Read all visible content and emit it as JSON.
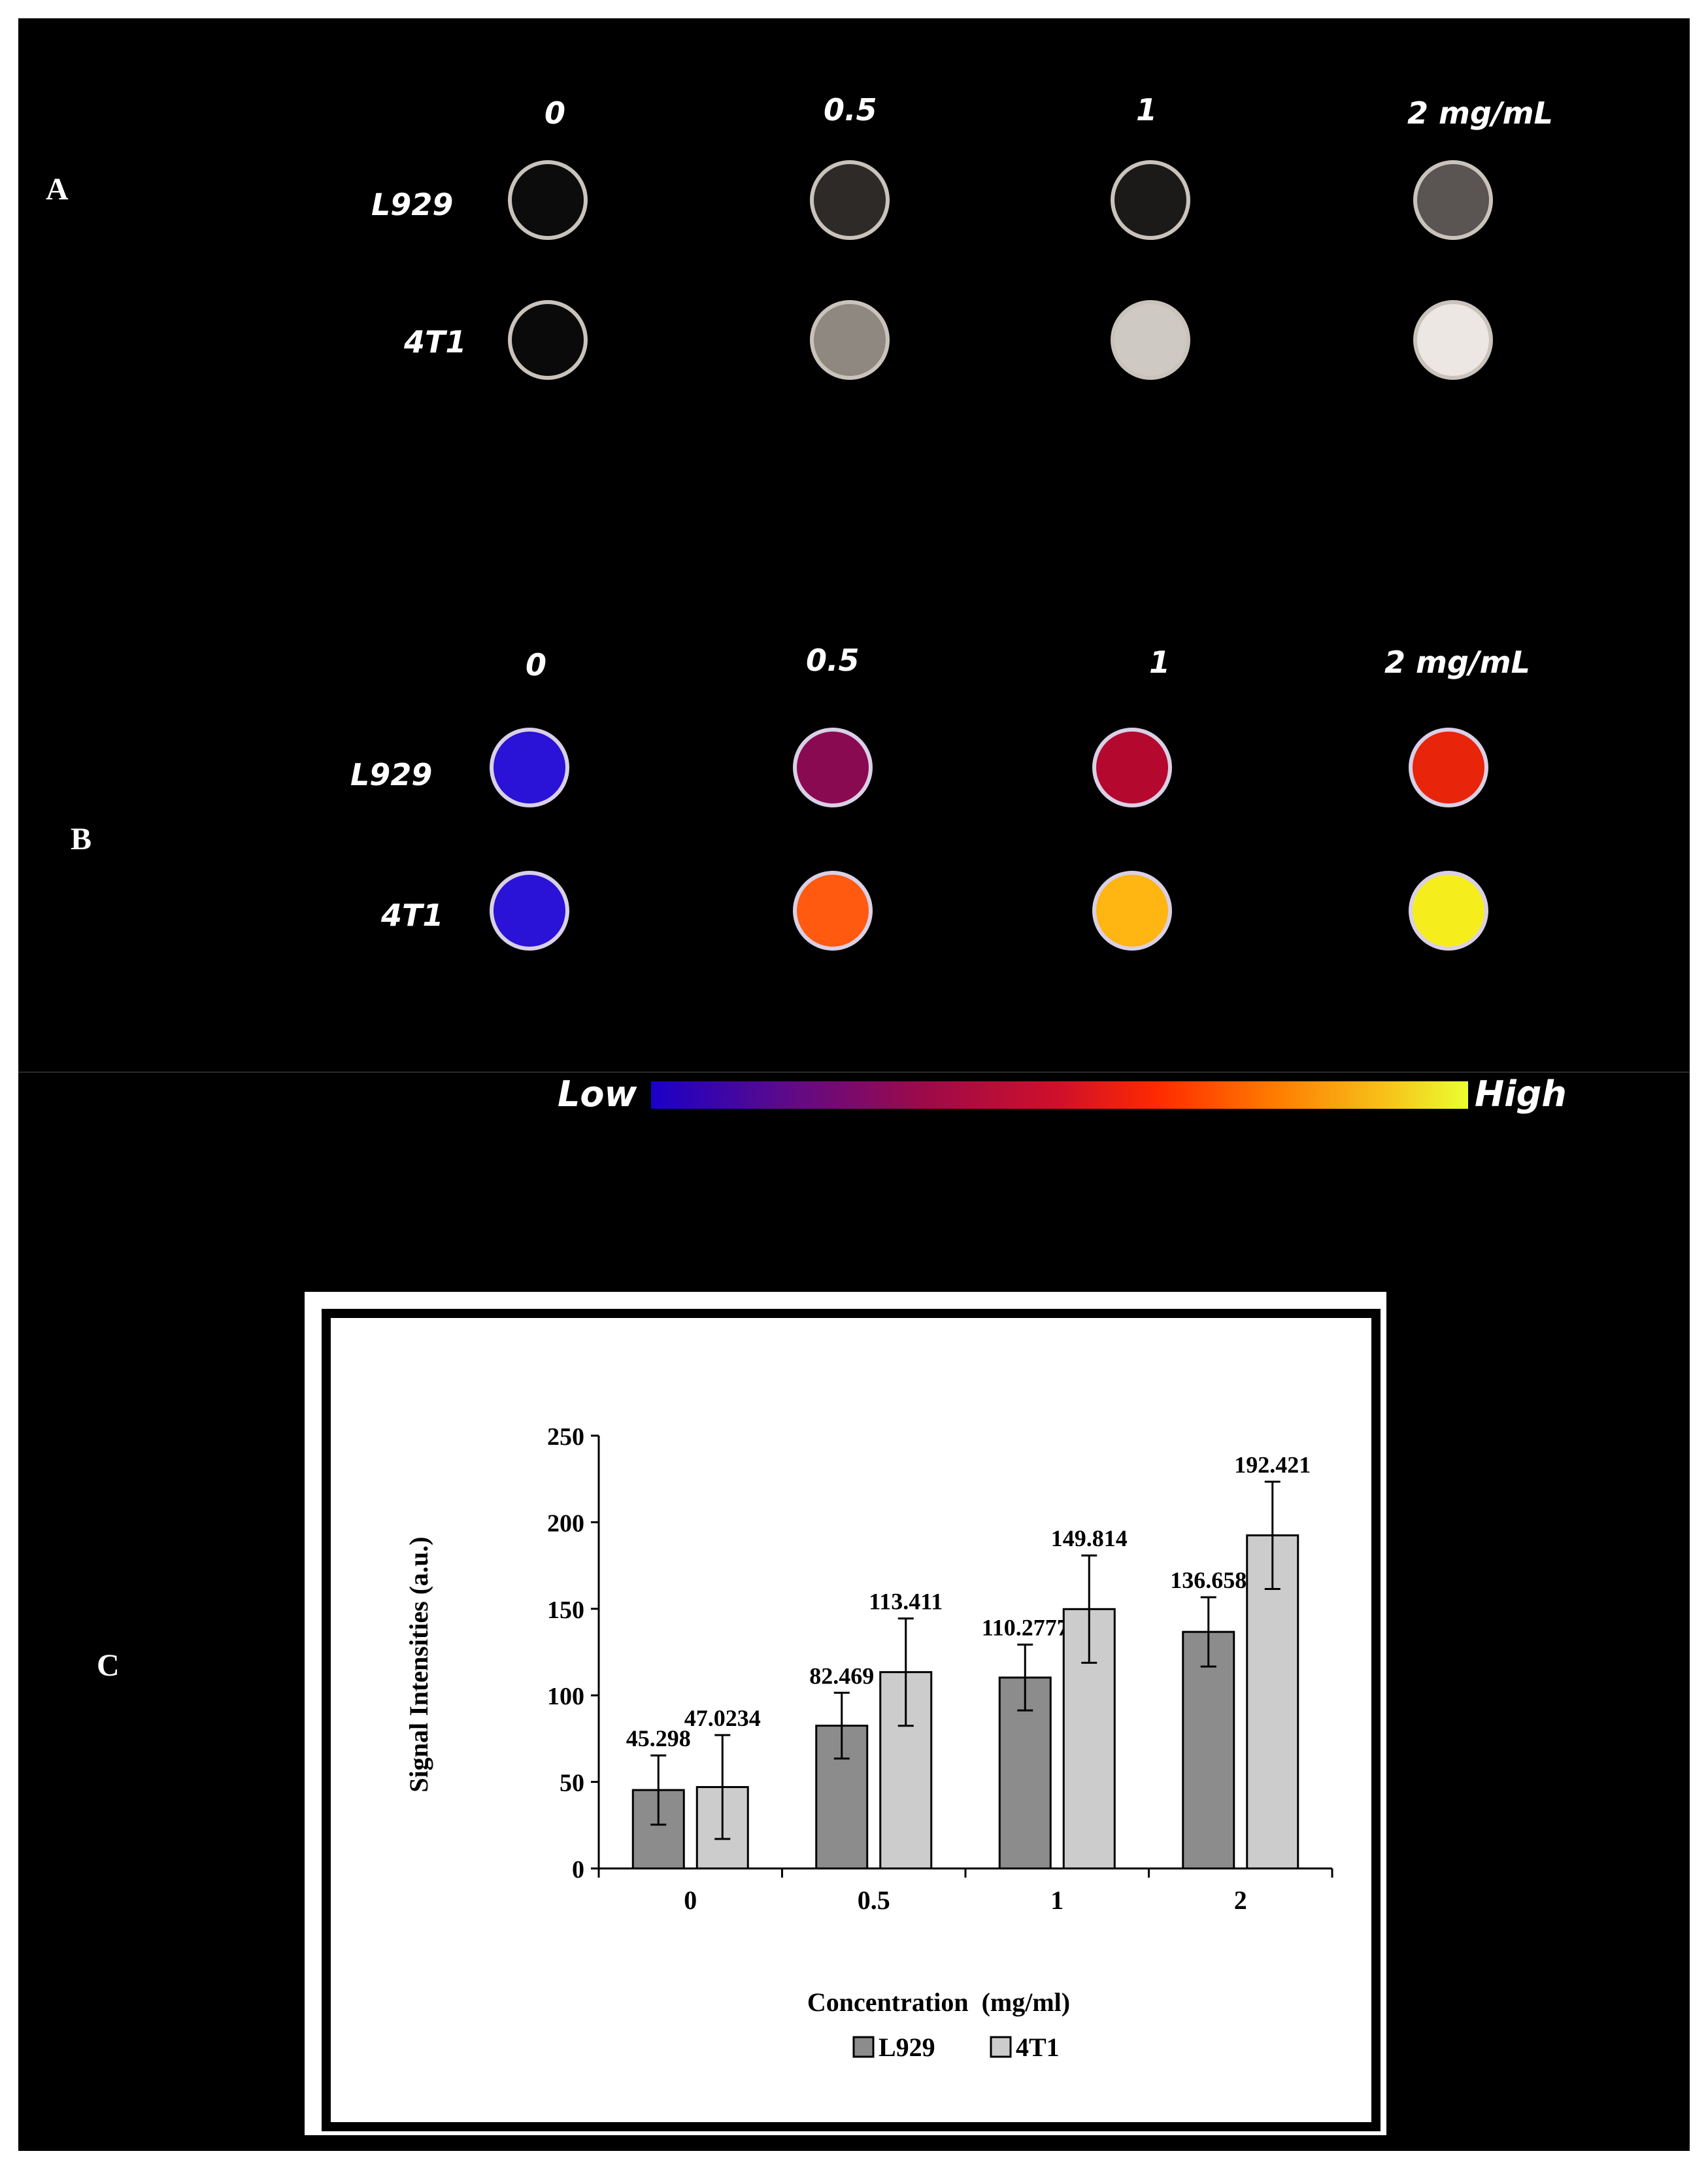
{
  "panels": {
    "a_letter": "A",
    "b_letter": "B",
    "c_letter": "C"
  },
  "panel_a": {
    "concentrations": [
      "0",
      "0.5",
      "1",
      "2 mg/mL"
    ],
    "rows": [
      "L929",
      "4T1"
    ],
    "well_colors": {
      "L929": [
        "#0d0c0c",
        "#2e2a28",
        "#1c1a19",
        "#5a5552"
      ],
      "4T1": [
        "#0b0a0a",
        "#8f8880",
        "#cfc9c3",
        "#ece7e2"
      ]
    }
  },
  "panel_b": {
    "concentrations": [
      "0",
      "0.5",
      "1",
      "2 mg/mL"
    ],
    "rows": [
      "L929",
      "4T1"
    ],
    "well_colors": {
      "L929": [
        "#2a12d6",
        "#8a0a52",
        "#b5082e",
        "#e8240a"
      ],
      "4T1": [
        "#2a12d6",
        "#ff5a10",
        "#ffb512",
        "#f6ee1c"
      ]
    },
    "colorbar": {
      "low_label": "Low",
      "high_label": "High"
    }
  },
  "chart_data": {
    "type": "bar",
    "categories": [
      "0",
      "0.5",
      "1",
      "2"
    ],
    "series": [
      {
        "name": "L929",
        "values": [
          45.298,
          82.469,
          110.2777,
          136.658
        ],
        "errors": [
          20,
          19,
          19,
          20
        ],
        "labels": [
          "45.298",
          "82.469",
          "110.2777",
          "136.658"
        ],
        "color": "#8c8c8c"
      },
      {
        "name": "4T1",
        "values": [
          47.0234,
          113.411,
          149.814,
          192.421
        ],
        "errors": [
          30,
          31,
          31,
          31
        ],
        "labels": [
          "47.0234",
          "113.411",
          "149.814",
          "192.421"
        ],
        "color": "#cccccc"
      }
    ],
    "xlabel": "Concentration  (mg/ml)",
    "ylabel": "Signal Intensities (a.u.)",
    "ylim": [
      0,
      250
    ],
    "yticks": [
      0,
      50,
      100,
      150,
      200,
      250
    ],
    "grid": false,
    "legend": "bottom"
  }
}
